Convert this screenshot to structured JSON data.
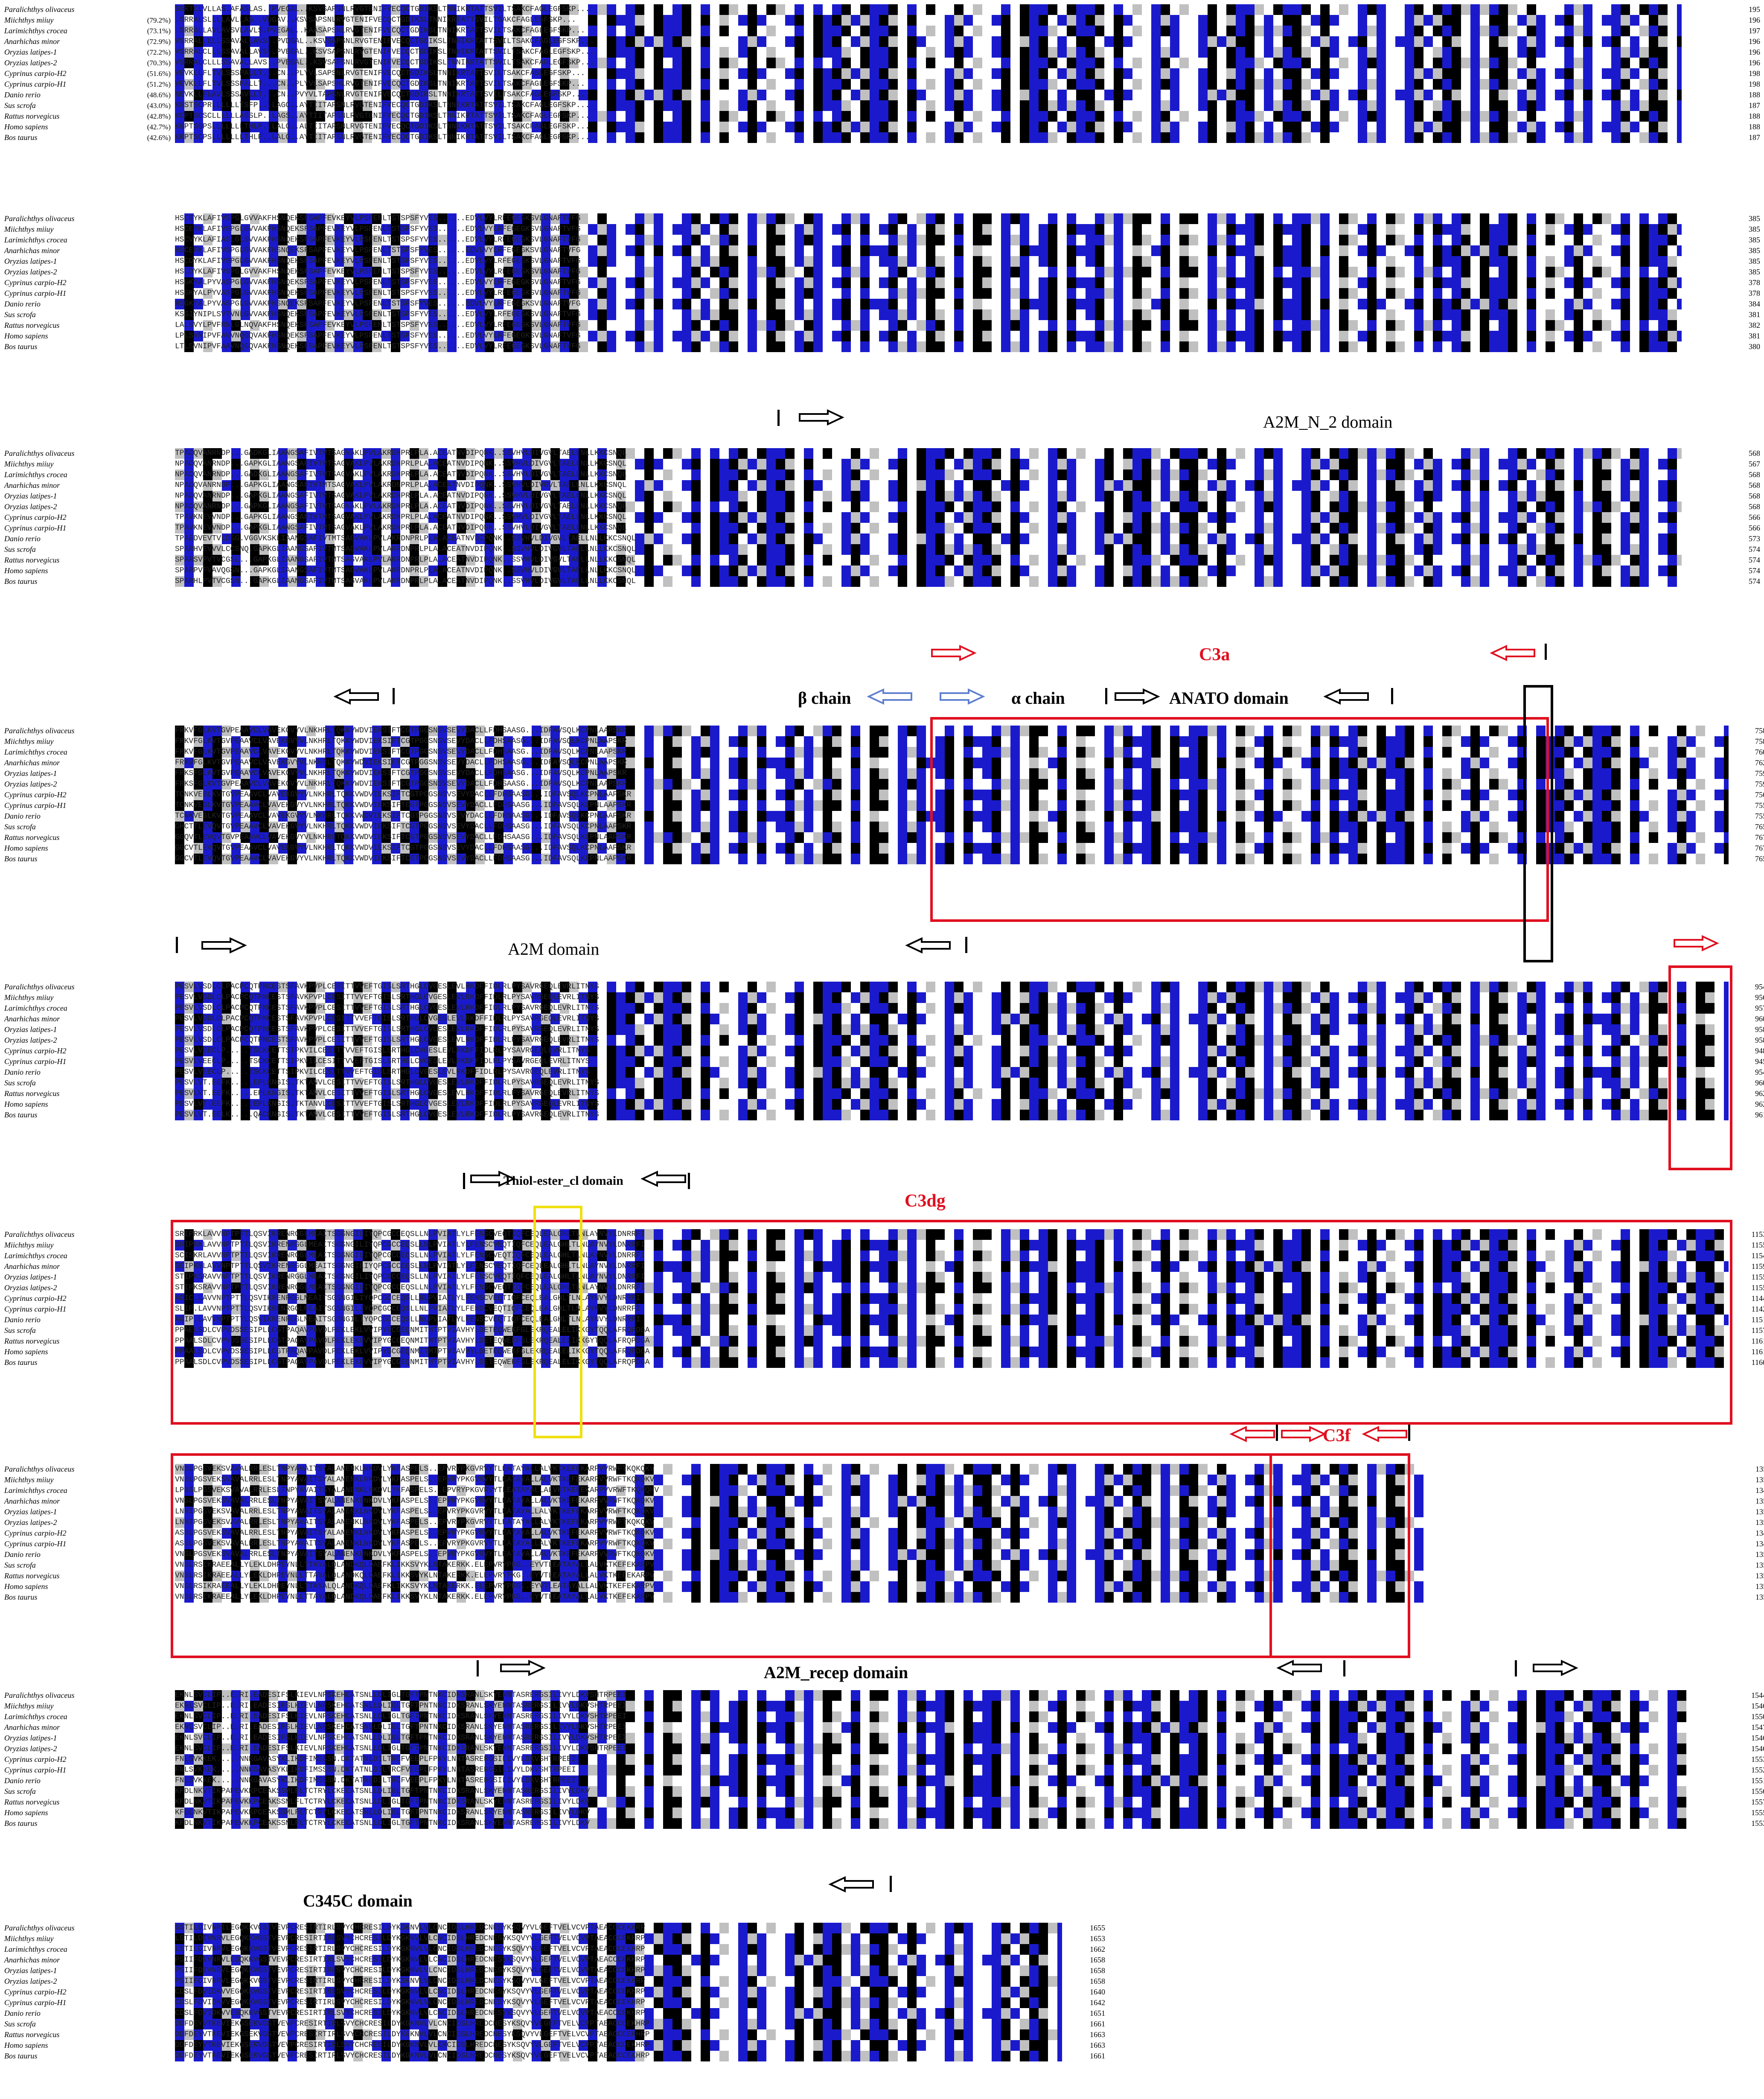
{
  "species": [
    "Paralichthys olivaceus",
    "Miichthys miiuy",
    "Larimichthys crocea",
    "Anarhichas minor",
    "Oryzias latipes-1",
    "Oryzias latipes-2",
    "Cyprinus carpio-H2",
    "Cyprinus carpio-H1",
    "Danio rerio",
    "Sus scrofa",
    "Rattus norvegicus",
    "Homo sapiens",
    "Bos taurus"
  ],
  "identities": [
    "",
    "(79.2%)",
    "(73.1%)",
    "(72.9%)",
    "(72.2%)",
    "(70.3%)",
    "(51.6%)",
    "(51.2%)",
    "(48.6%)",
    "(43.0%)",
    "(42.8%)",
    "(42.7%)",
    "(42.6%)"
  ],
  "blocks": [
    {
      "id": "block1",
      "seq": [
        "SGRTCLVLLAS.AFASLAS..PVEGAL..KSVSAPSNLRVGTENIFVECQCTGDIKSLTNNIKRTATTSVILTSAKCFAGLEGFSKP...",
        ".SRRALSLLLLAVLLAS..VDGAV..KSVSAPSNLRVGTENIFVECQCTGDIKSLTNNIKRTATTSVILTSAKCFAGLEGFSKP...",
        ".SRRGLLAVLAVSVLAVLS.PVEGAL..KAASAPSNLRVGTENIFVECQCTGDIKSLTNNIKRTATTSVILTSAKCFAGLEGFSKP...",
        "VSRRAL.LLLSSAVALLAVS..PVDGAL..KSVSAPSNLRVGTENIFVECQCTGDIKSLTNNIKRTATTSVILTSAKCFAGLEGFSKP...",
        "VSRRALCLLLSSAVALLAVS..PVEGAL..KSVSAPSNLRVGTENIFVECQCTGDIKSLTNNIKRTATTSVILTSAKCFAGLEGFSKP...",
        "VSRRALCLLLSSAVALLAVS..PVEGAL..KSVSAPSNLRVGTENIFVECQCTGDIKSLTNNIKRTATTSVILTSAKCFAGLEGFSKP...",
        "VEVKLLFLTVLSSSPALLT...CN..PLYVLSAPSNLRVGTENIFVECQCTGDIKSLTNNIKRTATTSVILTSAKCFAGLEGFSKP...",
        "VEVKLLFLTVLSSSPALLT...CN..PLYVLSAPSNLRVGTENIFVECQCTGDIKSLTNNIKRTATTSVILTSAKCFAGLEGFSKP...",
        "NEVKLLFLAVLSSSAVLLT...CN..PVYVLTAPSNLRVGTENIFVECQCTGDIKSLTNNIKRTATTSVILTSAKCFAGLEGFSKP...",
        "KGSTSCPRLLLLLLTSFP...LAGC..AYTIITAPSNLRVGTENIFVECQCTGDIKSLTNNIKRTATTSVILTSAKCFAGLEGFSKP...",
        "KCPTSCSCLLLLLLASSLP..LAGS..AYTIITAPSNLRVGTENIFVECQCTGDIKSLTNNIKRTATTSVILTSAKCFAGLEGFSKP...",
        "KGPTSGPSLLLLLLLTHLP..LALG..ALTIITAPSNLRVGTENIFVECQCTGDIKSLTNNIKRTATTSVILTSAKCFAGLEGFSKP...",
        "KKPTSCPSLLLLLLLTHLP..LALG..AYTIITAPSNLRVGTENIFVECQCTGDIKSLTNNIKRTATTSVILTSAKCFAGLEGFSKP..."
      ],
      "end": [
        "195",
        "196",
        "197",
        "196",
        "196",
        "196",
        "198",
        "198",
        "188",
        "187",
        "188",
        "188",
        "187"
      ]
    },
    {
      "id": "block2",
      "seq": [
        "HSCEYKLAFIVSPGLGVVAKFHSNQEKSFSAPFEVKEYVLPSFENLTSTSPSFYVES......EDVLVYLRFEGEGKSVLGNAFTVFG",
        "HSCEYKLAFIVSPGLGVVAKFHSNQEKSFSAPFEVKEYVLPSFENLTSTSPSFYVES......EDVLVYLRFEGEGKSVLGNAFTVFG",
        "HSCVYKLAFIASLGLSVVAKFHSNQEKSFSAPFEVKEYVLPSFENLTSTSPSFYVES......EDVLVYLRFEGEGKSVLGNAFTVFG",
        "HSCEFKLAFIVSPGLGVVAKFHSNQEKSFSAPFEVKEYVLPSFENLTSTSPSFYVES......EDVLVYLRFEGEGKSVLGNAFTVFG",
        "HSCDYKLAFIVSPGLGVVAKFHSNQEKSFSAPFEVKEYVLPSFENLTSTSPSFYVES......EDVLVYLRFEGEGKSVLGNAFTVFG",
        "HSCDYKLAFIVSPGLGVVAKFHSNQEKSFSAPFEVKEYVLPSFENLTSTSPSFYVES......EDVLVYLRFEGEGKSVLGNAFTVFG",
        "HSGKYALPYVASPGLGVVAKFHSNQEKSFSAPFEVKEYVLPSFENLTSTSPSFYVES......EDVLVYLRFEGEGKSVLGNAFTVFG",
        "HSGKYALPYVASPGLGVVAKFHSNQEKSFSAPFEVKEYVLPSFENLTSTSPSFYVES......EDVLVYLRFEGEGKSVLGNAFTVFG",
        "HSGKYALPYVASPGLGVVAKFHSNQEKSFSAPFEVKEYVLPSFENLTSTSPSFYVES......EDVLVYLRFEGEGKSVLGNAFTVFG",
        "KSSIYNIPLSVTVNLGVVAKFHSNQEKSFSAPFEVKEYVLPSFENLTSTSPSFYVES......EDVLVYLRFEGEGKSVLGNAFTVFG",
        "LALSVYLPVFRNLGLNQVAKFHSNQEKSFSAPFEVKEYVLPSFENLTSTSPSFYVES......EDVLVYLRFEGEGKSVLGNAFTVFG",
        "LPLSVNIPVFAVVNQGQVAKFHSNQEKSFSAPFEVKEYVLPSFENLTSTSPSFYVES......EDVLVYLRFEGEGKSVLGNAFTVFG",
        "LTLSVNIPVFAAVNQGQVAKFHSNQEKSFSAPFEVKEYVLPSFENLTSTSPSFYVES......EDVLVYLRFEGEGKSVLGNAFTVFG"
      ],
      "end": [
        "385",
        "385",
        "385",
        "385",
        "385",
        "385",
        "378",
        "378",
        "384",
        "381",
        "382",
        "381",
        "380"
      ]
    },
    {
      "id": "block3",
      "seq": [
        "TPACQVANRNDP...GADKGLIAANGSAFIVTMTSAGVAKLPVLAKRDNPRLPLA.ACEATNVDIPQNK..SSVHVLDIVGVLTAELLNLLKKCSNQL",
        "NPACQVANRNDP...GAPKGLIAANGSAFIVTMTSAGVAKLPVLAKRDNPRLPLA.ACEATNVDIPQNK..SSVHVLDIVGVLTAELLNLLKKCSNQL",
        "NPACQVANRNDP...GADKGLIAANGSAFIVTMTSAGVAKLPVLAKRDNPRLPLA.ACEATNVDIPQNK..SSVHVLDIVGVLTAELLNLLKKCSNQL",
        "NPACQVANRNDP...GAPKGLIAANGSAFIVTMTSAGVAKLPVLAKRDNPRLPLA.ACEATNVDIPQNK..SSVHVLDIVGVLTAELLNLLKKCSNQL",
        "NPACQVANRNDP...GAPKGLIAANGSAFIVTMTSAGVAKLPVLAKRDNPRLPLA.ACEATNVDIPQNK..SSVHVLDIVGVLTAELLNLLKKCSNQL",
        "NPACQVANRNDP...GAPKGLIAANGSAFIVTMTSAGVAKLPVLAKRDNPRLPLA.ACEATNVDIPQNK..SSVHVLDIVGVLTAELLNLLKKCSNQL",
        "TPAVKNEVVNDP...GAPKGLIAANGSAFIVTMTSAGVAKLPVLAKRDNPRLPLA.ACEATNVDIPQNK..SSVHVLDIVGVLTAELLNLLKKCSNQL",
        "TPAVKNEVVNDP...GAPKGLIAANGSAFIVTMTSAGVAKLPVLAKRDNPRLPLA.ACEATNVDIPQNK..SSVHVLDIVGVLTAELLNLLKKCSNQL",
        "TPAEDVEVTVLDSG.VGGVKSKLIAANGSAFIVTMTSAGVAKLPVLAKRDNPRLPLA.ACEATNVDIPQNK..SSVHVLDIVGVLTAELLNLLKKCSNQL",
        "SPARHVEVVVLCCSNQ.GAPKGLIAANGSAFIVTMTSAGVAKLPVLAKRDNPRLPLA.ACEATNVDIPQNK..SSVHVLDIVGVLTAELLNLLKKCSNQL",
        "SPARSVPVTVCGSL...GAPKGLIAANGSAFIVTMTSAGVAKLPVLAKRDNPRLPLA.ACEATNVDIPQNK..SSVHVLDIVGVLTAELLNLLKKCSNQL",
        "SPARPVFVAVQGSN...GAPKGLIAANGSAFIVTMTSAGVAKLPVLAKRDNPRLPLA.ACEATNVDIPQNK..SSVHVLDIVGVLTAELLNLLKKCSNQL",
        "SPARHLPVTVCGSN...GAPKGLIAANGSAFIVTMTSAGVAKLPVLAKRDNPRLPLA.ACEATNVDIPQNK..SSVHVLDIVGVLTAELLNLLKKCSNQL"
      ],
      "end": [
        "568",
        "567",
        "568",
        "568",
        "568",
        "568",
        "566",
        "566",
        "573",
        "574",
        "574",
        "574",
        "574"
      ]
    },
    {
      "id": "block4",
      "seq": [
        "FRKVFGLKVTGVPEAAVCLVAVEKGVYVLNKHRLTQKKVWDVIEKSIFTCGTPGGSNSVSEVYDACLLFDHSAASG...IDFAVSQLKCPNLAAPSKR",
        "FRKVFGLKVTGVPEAAVCLVAVEKGVYVLNKHRLTQKKVWDVIEKSIFTCGTPGGSNSVSEVYDACLLFDHSAASG...IDFAVSQLKCPNLAAPSKR",
        "FRKVFGLKVTGVPEAAVCLVAVEKGVYVLNKHRLTQKKVWDVIEKSIFTCGTPGGSNSVSEVYDACLLFDHSAASG...IDFAVSQLKCPNLAAPSKR",
        "FRKVFGLKVTGVPEAAVCLVAVEKGVYVLNKHRLTQKKVWDVIEKSIFTCGTPGGSNSVSEVYDACLLFDHSAASG...IDFAVSQLKCPNLAAPSKR",
        "FRKSFGLKVTGVPEAAVCLVAVEKGVYVLNKHRLTQKKVWDVIEKSIFTCGTPGGSNSVSEVYDACLLFDHSAASG...IDFAVSQLKCPNLAAPSKR",
        "FRKSFGLKVTGVPEAAVCLVAVEKGVYVLNKHRLTQKKVWDVIEKSIFTCGTPGGSNSVSEVYDACLLFDHSAASG...IDFAVSQLKCPNLAAPSKR",
        "TCNKVEGLKVTGVPEAAVCLVAVEKGVYVLNKHRLTQKKVWDVIEKSIFTCGTPGGSNSVSEVYDACLLFDHSAASG...IDFAVSQLKCPNLAAPSKR",
        "TCNKVEGLKVTGVPEAAVCLVAVEKGVYVLNKHRLTQKKVWDVIEKSIFTCGTPGGSNSVSEVYDACLLFDHSAASG...IDFAVSQLKCPNLAAPSKR",
        "TCNKVEGLKVTGVPEAAVCLVAVEKGVYVLNKHRLTQKKVWDVIEKSIFTCGTPGGSNSVSEVYDACLLFDHSAASG...IDFAVSQLKCPNLAAPSKR",
        "GHCTTLEVQVTGVPEAAVCLVAVEKGVYVLNKHRLTQKKVWDVIEKSIFTCGTPGGSNSVSEVYDACLLFDHSAASG...IDFAVSQLKCPNLAAPSKR",
        "GGQVTLEVQVTGVPEAAVCLVAVEKGVYVLNKHRLTQKKVWDVIEKSIFTCGTPGGSNSVSEVYDACLLFDHSAASG...IDFAVSQLKCPNLAAPSKR",
        "GGCVTLEVQVTGVPEAAVCLVAVEKGVYVLNKHRLTQKKVWDVIEKSIFTCGTPGGSNSVSEVYDACLLFDHSAASG...IDFAVSQLKCPNLAAPSKR",
        "GGCVTLEVQVTGVPEAAVCLVAVEKGVYVLNKHRLTQKKVWDVIEKSIFTCGTPGGSNSVSEVYDACLLFDHSAASG...IDFAVSQLKCPNLAAPSKR"
      ],
      "end": [
        "758",
        "758",
        "760",
        "762",
        "759",
        "759",
        "756",
        "755",
        "755",
        "765",
        "767",
        "767",
        "765"
      ]
    },
    {
      "id": "block5",
      "seq": [
        "PESVLVSDLCLPACPCQTPNCESTSFAVKPVPLCESITTVVEFTGISLSRTHGLCVGESLEVLRKDFFIDLRLPYSAVRGEQLEVRLITNYS",
        "PESVLVSDLCLPACPCQTPNCESTSFAVKPVPLCESITTVVEFTGISLSRTHGLCVGESLEVLRKDFFIDLRLPYSAVRGEQLEVRLITNYS",
        "PESVLVSDLCLPACPCQTPNCESTSFAVKPVPLCESITTVVEFTGISLSRTHGLCVGESLEVLRKDFFIDLRLPYSAVRGEQLEVRLITNYS",
        "PESVLVSDLCLPACPCQTPNCESTSFAVKPVPLCESITTVVEFTGISLSRTHGLCVGESLEVLRKDFFIDLRLPYSAVRGEQLEVRLITNYS",
        "PESVLVSDLCLPACPCQTPNCESTSFAVKPVPLCESITTVVEFTGISLSRTHGLCVGESLEVLRKDFFIDLRLPYSAVRGEQLEVRLITNYS",
        "PESVLVSDLCLPACPCQTPNCESTSFAVKPVPLCESITTVVEFTGISLSRTHGLCVGESLEVLRKDFFIDLRLPYSAVRGEQLEVRLITNYS",
        "PESVLVEECLP.....TSCKCETTSIPKVILCESITTVVEFTGISLSRTHGLCVGESLEVLRKDFFIDLRLPYSAVRGEQLEVRLITNYS",
        "PESVLVEECLP.....TSCKCETTSIPKVILCESITTVVEFTGISLSRTHGLCVGESLEVLRKDFFIDLRLPYSAVRGEQLEVRLITNYS",
        "PESVLVEECLP.....TSCKCETTSIPKVILCESITTVVEFTGISLSRTHGLCVGESLEVLRKDFFIDLRLPYSAVRGEQLEVRLITNYS",
        "PESVLVT.EEFK.....EPLKNGIS.TKTANVLCESITTVVEFTGISLSRTHGLCVGESLEVLRKDFFIDLRLPYSAVRGEQLEVRLITNYS",
        "PESVLVT.EEFK.....EPLKNGIS.TKTANVLCESITTVVEFTGISLSRTHGLCVGESLEVLRKDFFIDLRLPYSAVRGEQLEVRLITNYS",
        "PESVLVT.EEFK.....EPLKNGIS.TKTANVLCESITTVVEFTGISLSRTHGLCVGESLEVLRKDFFIDLRLPYSAVRGEQLEVRLITNYS",
        "PESVLVT.EELK.....QACKNGIS.TKTANVLCESITTVVEFTGISLSRTHGLCVGESLEVLRKDFFIDLRLPYSAVRGEQLEVRLITNYS"
      ],
      "end": [
        "954",
        "956",
        "957",
        "960",
        "958",
        "958",
        "948",
        "945",
        "954",
        "960",
        "962",
        "962",
        "961"
      ]
    },
    {
      "id": "block6",
      "seq": [
        "SRIPRKLAVVNPTPTTLQSVIKRENRGGLMEAITSGSNGILIYQPCGCCEQSLLNLPVIATLYLFENSCVEQTIQFCEQLEALGHLTLNLAYNVYLDNRRFI",
        "SRIPRKLAVVNPTPTTLQSVIKRENRGGLMEAITSGSNGILIYQPCGCCEQSLLNLPVIATLYLFENSCVEQTIQFCEQLEALGHLTLNLAYNVYLDNRRFI",
        "SCISKRLAVVNPTPTTLQSVIKRENRGGLMEAITSGSNGILIYQPCGCCEQSLLNLPVIATLYLFENSCVEQTIQFCEQLEALGHLTLNLAYNVYLDNRRFI",
        "SCIPKNLAVVNPTPTTLQSVIKRENRGGLMEAITSGSNGILIYQPCGCCEQSLLNLPVIATLYLFENSCVEQTIQFCEQLEALGHLTLNLAYNVYLDNRRFI",
        "STIPKSRAVVNPTPTTLQSVIKRENRGGLMEAITSGSNGILIYQPCGCCEQSLLNLPVIATLYLFENSCVEQTIQFCEQLEALGHLTLNLAYNVYLDNRRFI",
        "STIPKSRAVVNPTPTTLQSVIKRENRGGLMEAITSGSNGILIYQPCGCCEQSLLNLPVIATLYLFENSCVEQTIQFCEQLEALGHLTLNLAYNVYLDNRRFI",
        "ADIC.LAVVNPTPTTLQSVIKRENRGGLMEAITSGSNGILIYQPCGCCEQSLLNLPVIATLYLFENSCVEQTIQFCEQLEALGHLTLNLAYNVYLDNRRFI",
        "SLIP.LAVVNPTPTTLQSVIKRENRGGLMEAITSGSNGILIYQPCGCCEQSLLNLPVIATLYLFENSCVEQTIQFCEQLEALGHLTLNLAYNVYLDNRRFI",
        "AGIP.LAVVNPTPTTLQSVIKRENRGGLMEAITSGSNGILIYQPCGCCEQSLLNLPVIATLYLFENSCVEQTIQFCEQLEALGHLTLNLAYNVYLDNRRFI",
        "PPAELSDLCVPVDSSESIPLLCGTPAQAVPAVDLPEKLEKLVVIPYGCGEQNMITMTPTVIAVHYLDETEQWEKFGLEKRQEALELIKKGYTQQLAFRQPDGA",
        "PPAALSDLCVPVDSSESIPLLCGTPAQAVPAVDLPEKLEKLVVIPYGCGEQNMITMTPTVIAVHYLDETEQWEKFGLEKRQEALELIKKGYTQQLAFRQPDGA",
        "PPAALSDLCVPVDSSESIPLLCGTPAQAVPAVDLPEKLEKLVVIPYGCGEQNMITMTPTVIAVHYLDETEQWEKFGLEKRQEALELIKKGYTQQLAFRQPDGA",
        "PPAALSDLCVPVDSSESIPLLCGTPAQAVPAVDLPEKLEKLVVIPYGCGEQNMITMTPTVIAVHYLDETEQWEKFGLEKRQEALELIKKGYTQQLAFRQPDGA"
      ],
      "end": [
        "1153",
        "1155",
        "1154",
        "1159",
        "1155",
        "1155",
        "1144",
        "1142",
        "1151",
        "1157",
        "1161",
        "1161",
        "1160"
      ]
    },
    {
      "id": "block7",
      "seq": [
        "VNSLPGSVEKSVAVALRRLESLTNPYAVAITSYALANENKLNKDVLYKFASPELS..EPVRYPKGVRVYTLEATAYALLALVKTKEFEKARPVVRWFTKQKQKV",
        "VNSLPGSVEKSVAVALRRLESLTNPYAVAITSYALANENKLNKDVLYKFASPELS..EPVRYPKGVRVYTLEATAYALLALVKTKEFEKARPVVRWFTKQKQKV",
        "LPNSLPGSVEKSVAVALRRLESLTNPYAVAITSYALANENKLNKDVLYKFASPELS..EPVRYPKGVRVYTLEATAYALLALVKTKEFEKARPVVRWFTKQKQKV",
        "VNSLPGSVEKSVAVALRRLESLTNPYAVAITSYALANENKLNKDVLYKFASPELS..EPVRYPKGVRVYTLEATAYALLALVKTKEFEKARPVVRWFTKQKQKV",
        "LNNIPGSVEKSVAVALRRLESLTNPYAVAITSYALANENKLNKDVLYKFASPELS..EPVRYPKGVRVYTLEATAYALLALVKTKEFEKARPVVRWFTKQKQKV",
        "LNNIPGSVEKSVAVALRRLESLTNPYAVAITSYALANENKLNKDVLYKFASPELS..EPVRYPKGVRVYTLEATAYALLALVKTKEFEKARPVVRWFTKQKQKV",
        "ASSLPGSVEKSVAVALRRLESLTNPYAVAITSYALANENKLNKDVLYKFASPELS..EPVRYPKGVRVYTLEATAYALLALVKTKEFEKARPVVRWFTKQKQKV",
        "ASSLPGSVEKSVAVALRRLESLTNPYAVAITSYALANENKLNKDVLYKFASPELS..EPVRYPKGVRVYTLEATAYALLALVKTKEFEKARPVVRWFTKQKQKV",
        "VNSLPGSVEKSVAVALRRLESLTNPYAVAITSYALANENKLNKDVLYKFASPELS..EPVRYPKGVRVYTLEATAYALLALVKTKEFEKARPVVRWFTKQKQKV",
        "VNSLRSIKRAEEALLYLEKLDHPEYNLLTTAYALQLANDKQLDAEFKLIKKSVYKLNTAKERKK.ELEPVRYPKG..EYVTLEATAYALLALVKTKEFEKARPV",
        "VNSLRSIKRAEEALLYLEKLDHPEYNLLTTAYALQLANDKQLDAEFKLIKKSVYKLNTAKERKK.ELEPVRYPKG..EYVTLEATAYALLALVKTKEFEKARPV",
        "VNSLRSIKRAEEALLYLEKLDHPEYNLLTTAYALQLANDKQLDAEFKLIKKSVYKLNTAKERKK.ELEPVRYPKG..EYVTLEATAYALLALVKTKEFEKARPV",
        "VNSLRSIKRAEEALLYLEKLDHPEYNLLTTAYALQLANDKQLDAEFKLIKKSVYKLNTAKERKK.ELEPVRYPKG..EYVTLEATAYALLALVKTKEFEKARPV"
      ],
      "end": [
        "1350",
        "1352",
        "1348",
        "1356",
        "1352",
        "1352",
        "1342",
        "1341",
        "1350",
        "1357",
        "1359",
        "1359",
        "1358"
      ]
    },
    {
      "id": "block8",
      "seq": [
        "EKNLSVCLIP..E.RI.EADESIFSLKIEVLNPSKEHCATSNLLDLIGLTGFTPNTNKCIDKSRANLSKYENNTASRERGSILIVYLDKVSHTRPEEI",
        "EKNLSVCLIP..E.RI.EADESIFSLKIEVLNPSKEHCATSNLLDLIGLTGFTPNTNKCIDKSRANLSKYENNTASRERGSILIVYLDKVSHTRPEEI",
        "EKNLSVCLIP..E.RI.EADESIFSLKIEVLNPSKEHCATSNLLDLIGLTGFTPNTNKCIDKSRANLSKYENNTASRERGSILIVYLDKVSHTRPEEI",
        "EKNLSVCLIP..E.RI.EADESIFSLKIEVLNPSKEHCATSNLLDLIGLTGFTPNTNKCIDKSRANLSKYENNTASRERGSILIVYLDKVSHTRPEEI",
        "EKNLSVCLIP..E.RI.EADESIFSLKIEVLNPSKEHCATSNLLDLIGLTGFTPNTNKCIDKSRANLSKYENNTASRERGSILIVYLDKVSHTRPEEI",
        "EKNLSVCLIP..E.RI.EADESIFSLKIEVLNPSKEHCATSNLLDLIGLTGFTPNTNKCIDKSRANLSKYENNTASRERGSILIVYLDKVSHTRPEEI",
        "FNLSVKKEK.....NNKGAVASYKLIKDFIMSSSN.DKTATNLDILTRCFVEEPLFPKYLNNTASRERGSILIVYLDKVSHTRPEEI",
        "FNLSVKKEK.....NNKGAVASYKLIKDFIMSSSN.DKTATNLDILTRCFVEEPLFPKYLNNTASRERGSILIVYLDKVSHTRPEEI",
        "FNLSVKKEK.....NNKGAVASYKLIKDFIMSSSN.DKTATNLDILTRCFVEEPLFPKYLNNTASRERGSILIVYLDKVSHTRPEEI",
        "KFDLNKVTIKPAPEVKKPCEAKSSMLFLTCTRYLCKECATSNLLDLIGLTGFTPNTNKCIDKSRANLSKYENNTASRERGSILIVYLDKV",
        "KFDLNKVTIKPAPEVKKPCEAKSSMLFLTCTRYLCKECATSNLLDLIGLTGFTPNTNKCIDKSRANLSKYENNTASRERGSILIVYLDKV",
        "KFDLNKVTIKPAPEVKKPCEAKSSMLFLTCTRYLCKECATSNLLDLIGLTGFTPNTNKCIDKSRANLSKYENNTASRERGSILIVYLDKV",
        "KFDLNKVTIKPAPEVKKPCEAKSSMLFLTCTRYLCKECATSNLLDLIGLTGFTPNTNKCIDKSRANLSKYENNTASRERGSILIVYLDKV"
      ],
      "end": [
        "1544",
        "1546",
        "1550",
        "1547",
        "1546",
        "1546",
        "1553",
        "1552",
        "1551",
        "1556",
        "1557",
        "1555",
        "1553"
      ]
    },
    {
      "id": "block9",
      "seq": [
        "GSTILDIVNRILEGQKKVGSTVEVPCRESIRTIRLSVYCHCRESILDYKGKNVLVLCNCIDSLHREDCNESYKSQVYVLGEFTVELVCVPTAEACCCEKHRP",
        "LSTILDIVNRVLEGQKKVGSTVEVPCRESIRTIRLSVYCHCRESILDYKGKNVLVLCNCIDSLHREDCNESYKSQVYVLGEFTVELVCVPTAEACCCEKHRP",
        "LSTILDIVNRVLEGQKKVGSTVEVPCRESIRTIRLSVYCHCRESILDYKGKNVLVLCNCIDSLHREDCNESYKSQVYVLGEFTVELVCVPTAEACCCEKHRP",
        "PSIIFDIVNRVLEGQKKVGSTVEVPCRESIRTIRLSVYCHCRESILDYKGKNVLVLCNCIDSLHREDCNESYKSQVYVLGEFTVELVCVPTAEACCCEKHRP",
        "PSIIFDIVNRVLEGQKKVGSTVEVPCRESIRTIRLSVYCHCRESILDYKGKNVLVLCNCIDSLHREDCNESYKSQVYVLGEFTVELVCVPTAEACCCEKHRP",
        "PSIIFDIVNRVLEGQKKVGSTVEVPCRESIRTIRLSVYCHCRESILDYKGKNVLVLCNCIDSLHREDCNESYKSQVYVLGEFTVELVCVPTAEACCCEKHRP",
        "CDSLFDVIDKVVEGQKKVGSTVEVPCRESIRTIRLSVYCHCRESILDYKGKNVLVLCNCIDSLHREDCNESYKSQVYVLGEFTVELVCVPTAEACCCEKHRP",
        "CDSLFDVIDKVVEGQKKVGSTVEVPCRESIRTIRLSVYCHCRESILDYKGKNVLVLCNCIDSLHREDCNESYKSQVYVLGEFTVELVCVPTAEACCCEKHRP",
        "CDSLFDVIDKVVEGQKKVGSTVEVPCRESIRTIRLSVYCHCRESILDYKGKNVLVLCNCIDSLHREDCNESYKSQVYVLGEFTVELVCVPTAEACCCEKHRP",
        "DDFDEYVTKEVIEKGSEKVGSTVEVPCRESIRTIRLSVYCHCRESILDYKGKNVLVLCNCIDSLHREDCNESYKSQVYVLGEFTVELVCVPTAEACCCEKHRP",
        "DDFDEYVTKEVIEKGSEKVGSTVEVPCRESIRTIRLSVYCHCRESILDYKGKNVLVLCNCIDSLHREDCNESYKSQVYVLGEFTVELVCVPTAEACCCEKHRP",
        "DDFDEYVTKEVIEKGSEKVGSTVEVPCRESIRTIRLSVYCHCRESILDYKGKNVLVLCNCIDSLHREDCNESYKSQVYVLGEFTVELVCVPTAEACCCEKHRP",
        "DDFDEYVTKEVIEKGSEKVGSTVEVPCRESIRTIRLSVYCHCRESILDYKGKNVLVLCNCIDSLHREDCNESYKSQVYVLGEFTVELVCVPTAEACCCEKHRP"
      ],
      "end": [
        "1655",
        "1653",
        "1662",
        "1658",
        "1658",
        "1658",
        "1640",
        "1642",
        "1651",
        "1661",
        "1663",
        "1663",
        "1661"
      ]
    }
  ],
  "labels": {
    "a2m_n2": "A2M_N_2 domain",
    "c3a": "C3a",
    "beta_chain": "β chain",
    "alpha_chain": "α chain",
    "anato": "ANATO domain",
    "a2m": "A2M domain",
    "thiol": "Thiol-ester_cl domain",
    "c3dg": "C3dg",
    "c3f": "C3f",
    "a2m_recep": "A2M_recep domain",
    "c345c": "C345C domain"
  },
  "colors": {
    "identical": "#1a1acc",
    "conserved": "#000000",
    "similar": "#c0c0c0",
    "box_red": "#e01020",
    "box_yellow": "#f0e010",
    "arrow_red": "#e01020",
    "arrow_blue": "#6080d0"
  }
}
